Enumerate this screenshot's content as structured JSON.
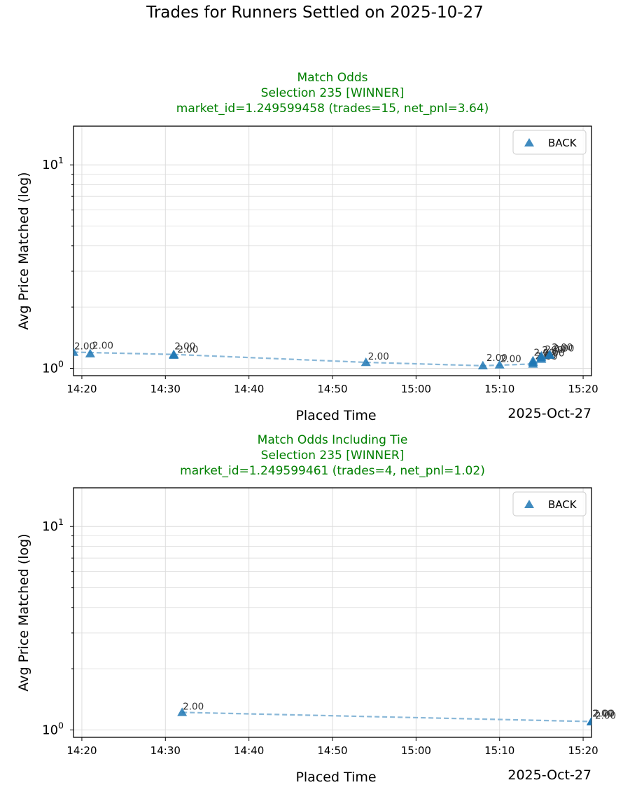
{
  "figure": {
    "suptitle": "Trades for Runners Settled on 2025-10-27"
  },
  "colors": {
    "title_green": "#008000",
    "series_blue": "#1f77b4",
    "line_blue": "#8ab8d8",
    "grid": "#dcdcdc",
    "axes": "#000000"
  },
  "chart_data": [
    {
      "type": "line",
      "title_lines": [
        "Match Odds",
        "Selection 235 [WINNER]",
        "market_id=1.249599458 (trades=15, net_pnl=3.64)"
      ],
      "xlabel": "Placed Time",
      "ylabel": "Avg Price Matched (log)",
      "date_offset_label": "2025-Oct-27",
      "xlim": [
        "14:19",
        "15:21"
      ],
      "xticks": [
        "14:20",
        "14:30",
        "14:40",
        "14:50",
        "15:00",
        "15:10",
        "15:20"
      ],
      "yscale": "log",
      "ylim": [
        0.92,
        15.5
      ],
      "yticks": [
        {
          "value": 1,
          "base": "10",
          "exp": "0"
        },
        {
          "value": 10,
          "base": "10",
          "exp": "1"
        }
      ],
      "grid": true,
      "legend": {
        "position": "top-right",
        "entries": [
          {
            "label": "BACK",
            "marker": "triangle"
          }
        ]
      },
      "series": [
        {
          "name": "BACK",
          "x": [
            "14:19",
            "14:21",
            "14:31",
            "14:31",
            "14:54",
            "15:08",
            "15:10",
            "15:14",
            "15:14",
            "15:14",
            "15:15",
            "15:15",
            "15:15",
            "15:16",
            "15:16"
          ],
          "y": [
            1.2,
            1.18,
            1.16,
            1.17,
            1.07,
            1.03,
            1.04,
            1.05,
            1.07,
            1.09,
            1.11,
            1.13,
            1.15,
            1.16,
            1.17
          ],
          "labels": [
            "2.00",
            "2.00",
            "2.00",
            "2.00",
            "2.00",
            "2.00",
            "2.00",
            "2.00",
            "2.00",
            "2.00",
            "2.00",
            "2.00",
            "2.00",
            "2.00",
            "2.00"
          ]
        }
      ],
      "trend_line": {
        "x": [
          "14:19",
          "14:31",
          "14:54",
          "15:08",
          "15:14",
          "15:16"
        ],
        "y": [
          1.2,
          1.17,
          1.07,
          1.03,
          1.05,
          1.17
        ]
      }
    },
    {
      "type": "line",
      "title_lines": [
        "Match Odds Including Tie",
        "Selection 235 [WINNER]",
        "market_id=1.249599461 (trades=4, net_pnl=1.02)"
      ],
      "xlabel": "Placed Time",
      "ylabel": "Avg Price Matched (log)",
      "date_offset_label": "2025-Oct-27",
      "xlim": [
        "14:19",
        "15:21"
      ],
      "xticks": [
        "14:20",
        "14:30",
        "14:40",
        "14:50",
        "15:00",
        "15:10",
        "15:20"
      ],
      "yscale": "log",
      "ylim": [
        0.92,
        15.5
      ],
      "yticks": [
        {
          "value": 1,
          "base": "10",
          "exp": "0"
        },
        {
          "value": 10,
          "base": "10",
          "exp": "1"
        }
      ],
      "grid": true,
      "legend": {
        "position": "top-right",
        "entries": [
          {
            "label": "BACK",
            "marker": "triangle"
          }
        ]
      },
      "series": [
        {
          "name": "BACK",
          "x": [
            "14:32",
            "15:21",
            "15:21",
            "15:21"
          ],
          "y": [
            1.22,
            1.1,
            1.1,
            1.1
          ],
          "labels": [
            "2.00",
            "2.00",
            "2.00",
            "2.00"
          ]
        }
      ],
      "trend_line": {
        "x": [
          "14:32",
          "15:21"
        ],
        "y": [
          1.22,
          1.1
        ]
      }
    }
  ]
}
